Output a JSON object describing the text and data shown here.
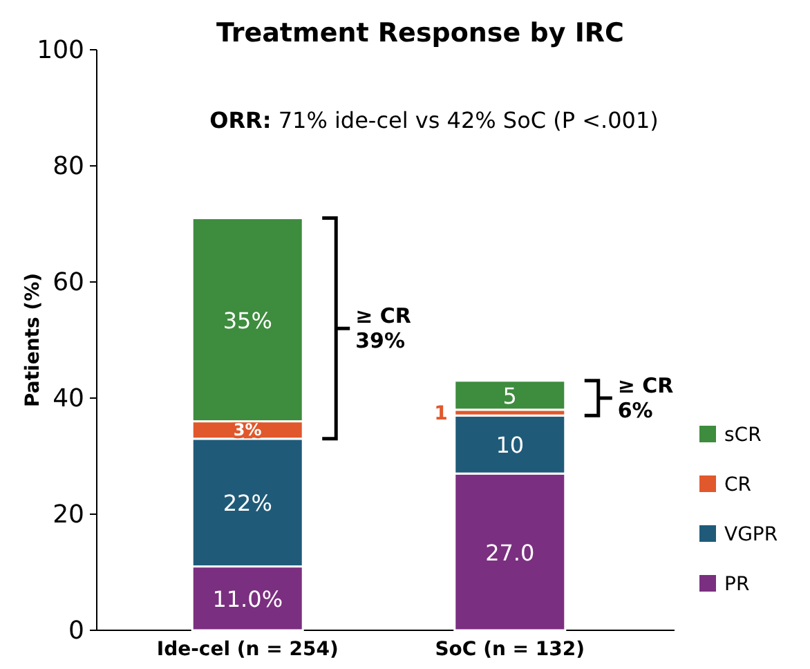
{
  "chart_data": {
    "type": "bar",
    "title": "Treatment Response by IRC",
    "ylabel": "Patients (%)",
    "categories": [
      "Ide-cel (n = 254)",
      "SoC (n = 132)"
    ],
    "stacked": true,
    "ylim": [
      0,
      100
    ],
    "yticks": [
      0,
      20,
      40,
      60,
      80,
      100
    ],
    "grid": false,
    "legend": "right",
    "series": [
      {
        "name": "PR",
        "color": "#7b2f80",
        "values": [
          11.0,
          27.0
        ],
        "value_labels": [
          "11.0%",
          "27.0"
        ]
      },
      {
        "name": "VGPR",
        "color": "#1f5b79",
        "values": [
          22,
          10
        ],
        "value_labels": [
          "22%",
          "10"
        ]
      },
      {
        "name": "CR",
        "color": "#e0582c",
        "values": [
          3,
          1
        ],
        "value_labels": [
          "3%",
          "1"
        ]
      },
      {
        "name": "sCR",
        "color": "#3e8c3e",
        "values": [
          35,
          5
        ],
        "value_labels": [
          "35%",
          "5"
        ]
      }
    ],
    "annotations": [
      "ORR: 71% ide-cel vs 42% SoC (P <.001)",
      "≥ CR 39%",
      "≥ CR 6%"
    ]
  }
}
